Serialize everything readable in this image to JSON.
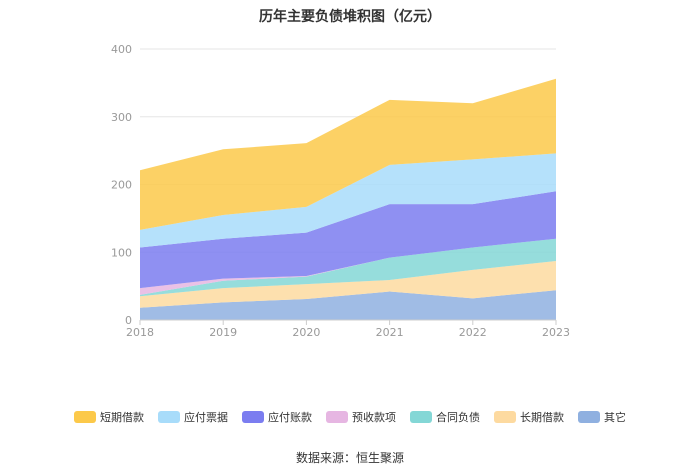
{
  "chart_data": {
    "type": "area",
    "stacked": true,
    "title": "历年主要负债堆积图（亿元）",
    "categories": [
      "2018",
      "2019",
      "2020",
      "2021",
      "2022",
      "2023"
    ],
    "ylim": [
      0,
      400
    ],
    "yticks": [
      "0",
      "100",
      "200",
      "300",
      "400"
    ],
    "grid": true,
    "legend_position": "bottom",
    "series": [
      {
        "name": "其它",
        "color": "#8fb0e0",
        "values": [
          18,
          26,
          31,
          42,
          32,
          44
        ]
      },
      {
        "name": "长期借款",
        "color": "#fddaa0",
        "values": [
          17,
          21,
          22,
          17,
          42,
          43
        ]
      },
      {
        "name": "合同负债",
        "color": "#84d7d6",
        "values": [
          2,
          11,
          11,
          33,
          33,
          33
        ]
      },
      {
        "name": "预收款项",
        "color": "#e6b6e2",
        "values": [
          10,
          3,
          1,
          0,
          0,
          0
        ]
      },
      {
        "name": "应付账款",
        "color": "#7b7df0",
        "values": [
          60,
          59,
          64,
          79,
          64,
          70
        ]
      },
      {
        "name": "应付票据",
        "color": "#a8dcfa",
        "values": [
          26,
          35,
          38,
          58,
          66,
          56
        ]
      },
      {
        "name": "短期借款",
        "color": "#fcc94a",
        "values": [
          88,
          97,
          94,
          96,
          83,
          110
        ]
      }
    ]
  },
  "legend_order": [
    "短期借款",
    "应付票据",
    "应付账款",
    "预收款项",
    "合同负债",
    "长期借款",
    "其它"
  ],
  "source": "数据来源：恒生聚源"
}
